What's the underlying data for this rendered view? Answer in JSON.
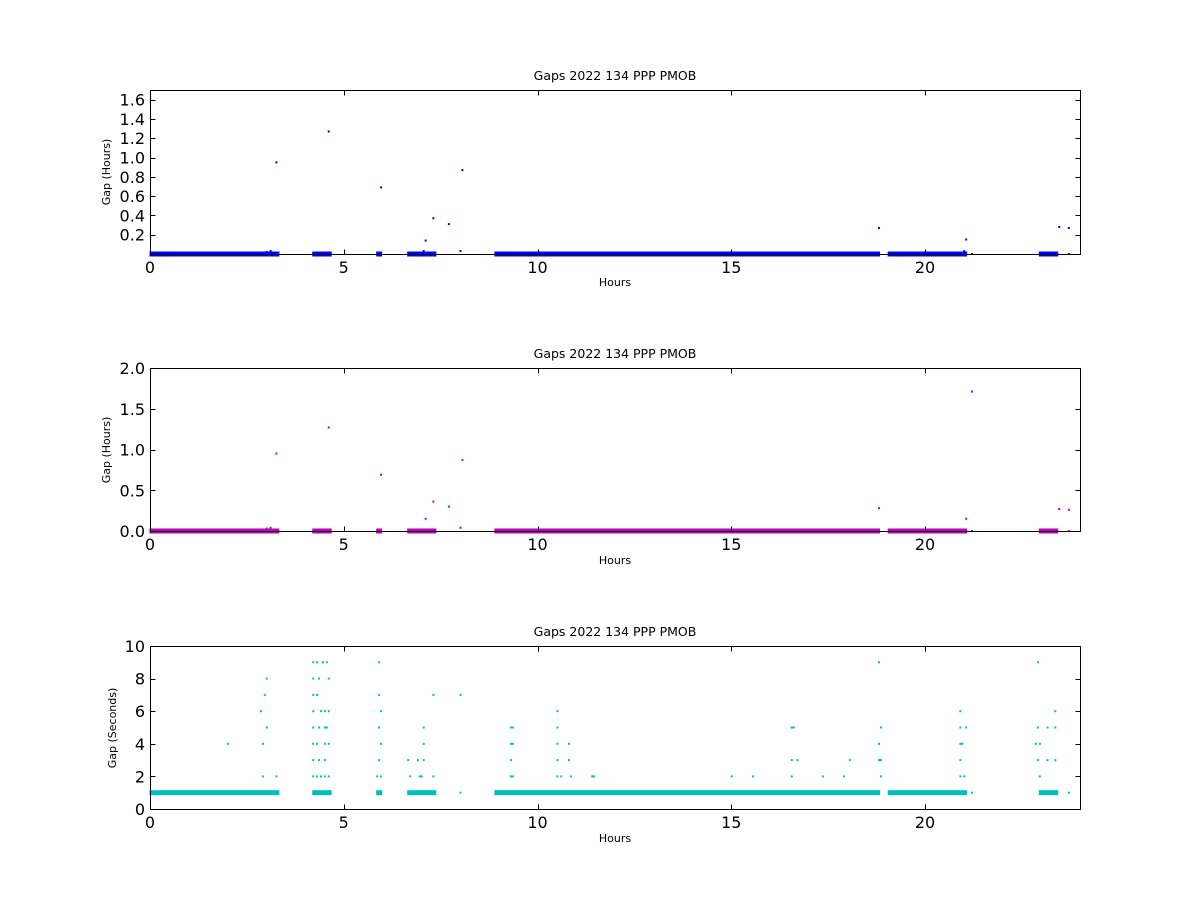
{
  "figure": {
    "background": "#ffffff"
  },
  "chart_data": [
    {
      "type": "scatter",
      "title": "Gaps 2022 134 PPP  PMOB",
      "xlabel": "Hours",
      "ylabel": "Gap (Hours)",
      "xlim": [
        0,
        24
      ],
      "ylim": [
        0,
        1.7
      ],
      "xticks": [
        0,
        5,
        10,
        15,
        20
      ],
      "xtick_labels": [
        "0",
        "5",
        "10",
        "15",
        "20"
      ],
      "yticks": [
        0.2,
        0.4,
        0.6,
        0.8,
        1.0,
        1.2,
        1.4,
        1.6
      ],
      "ytick_labels": [
        "0.2",
        "0.4",
        "0.6",
        "0.8",
        "1.0",
        "1.2",
        "1.4",
        "1.6"
      ],
      "grid": false,
      "color": "#0000ff",
      "dense_ranges": [
        {
          "x": [
            0.0,
            3.3
          ],
          "y": 0.0
        },
        {
          "x": [
            4.2,
            4.65
          ],
          "y": 0.0
        },
        {
          "x": [
            5.85,
            5.95
          ],
          "y": 0.0
        },
        {
          "x": [
            6.65,
            7.35
          ],
          "y": 0.0
        },
        {
          "x": [
            8.9,
            18.8
          ],
          "y": 0.0
        },
        {
          "x": [
            19.05,
            21.05
          ],
          "y": 0.0
        },
        {
          "x": [
            22.95,
            23.4
          ],
          "y": 0.0
        }
      ],
      "points": [
        {
          "x": 3.25,
          "y": 0.95
        },
        {
          "x": 4.6,
          "y": 1.27
        },
        {
          "x": 5.95,
          "y": 0.69
        },
        {
          "x": 7.1,
          "y": 0.14
        },
        {
          "x": 7.3,
          "y": 0.37
        },
        {
          "x": 7.7,
          "y": 0.31
        },
        {
          "x": 8.05,
          "y": 0.87
        },
        {
          "x": 8.0,
          "y": 0.03
        },
        {
          "x": 7.05,
          "y": 0.03
        },
        {
          "x": 3.0,
          "y": 0.02
        },
        {
          "x": 3.1,
          "y": 0.03
        },
        {
          "x": 18.8,
          "y": 0.27
        },
        {
          "x": 21.05,
          "y": 0.15
        },
        {
          "x": 21.0,
          "y": 0.03
        },
        {
          "x": 21.2,
          "y": 0.0
        },
        {
          "x": 23.45,
          "y": 0.28
        },
        {
          "x": 23.7,
          "y": 0.27
        },
        {
          "x": 23.7,
          "y": 0.0
        }
      ]
    },
    {
      "type": "scatter",
      "title": "Gaps 2022 134 PPP  PMOB",
      "xlabel": "Hours",
      "ylabel": "Gap (Hours)",
      "xlim": [
        0,
        24
      ],
      "ylim": [
        0,
        2.0
      ],
      "xticks": [
        0,
        5,
        10,
        15,
        20
      ],
      "xtick_labels": [
        "0",
        "5",
        "10",
        "15",
        "20"
      ],
      "yticks": [
        0.0,
        0.5,
        1.0,
        1.5,
        2.0
      ],
      "ytick_labels": [
        "0.0",
        "0.5",
        "1.0",
        "1.5",
        "2.0"
      ],
      "grid": false,
      "color": "#bf00bf",
      "dense_ranges": [
        {
          "x": [
            0.0,
            3.3
          ],
          "y": 0.0
        },
        {
          "x": [
            4.2,
            4.65
          ],
          "y": 0.0
        },
        {
          "x": [
            5.85,
            5.95
          ],
          "y": 0.0
        },
        {
          "x": [
            6.65,
            7.35
          ],
          "y": 0.0
        },
        {
          "x": [
            8.9,
            18.8
          ],
          "y": 0.0
        },
        {
          "x": [
            19.05,
            21.05
          ],
          "y": 0.0
        },
        {
          "x": [
            22.95,
            23.4
          ],
          "y": 0.0
        }
      ],
      "points": [
        {
          "x": 3.25,
          "y": 0.95
        },
        {
          "x": 4.6,
          "y": 1.27
        },
        {
          "x": 5.95,
          "y": 0.69
        },
        {
          "x": 7.1,
          "y": 0.15
        },
        {
          "x": 7.3,
          "y": 0.36
        },
        {
          "x": 7.7,
          "y": 0.3
        },
        {
          "x": 8.05,
          "y": 0.87
        },
        {
          "x": 8.0,
          "y": 0.04
        },
        {
          "x": 3.0,
          "y": 0.03
        },
        {
          "x": 3.1,
          "y": 0.04
        },
        {
          "x": 18.8,
          "y": 0.28
        },
        {
          "x": 21.05,
          "y": 0.15
        },
        {
          "x": 21.2,
          "y": 1.71
        },
        {
          "x": 21.2,
          "y": 0.0
        },
        {
          "x": 23.45,
          "y": 0.27
        },
        {
          "x": 23.7,
          "y": 0.26
        },
        {
          "x": 23.7,
          "y": 0.0
        }
      ]
    },
    {
      "type": "scatter",
      "title": "Gaps 2022 134 PPP  PMOB",
      "xlabel": "Hours",
      "ylabel": "Gap (Seconds)",
      "xlim": [
        0,
        24
      ],
      "ylim": [
        0,
        10
      ],
      "xticks": [
        0,
        5,
        10,
        15,
        20
      ],
      "xtick_labels": [
        "0",
        "5",
        "10",
        "15",
        "20"
      ],
      "yticks": [
        0,
        2,
        4,
        6,
        8,
        10
      ],
      "ytick_labels": [
        "0",
        "2",
        "4",
        "6",
        "8",
        "10"
      ],
      "grid": false,
      "color": "#00bfbf",
      "dense_ranges": [
        {
          "x": [
            0.0,
            3.3
          ],
          "y": 1
        },
        {
          "x": [
            4.2,
            4.65
          ],
          "y": 1
        },
        {
          "x": [
            5.85,
            5.95
          ],
          "y": 1
        },
        {
          "x": [
            6.65,
            7.35
          ],
          "y": 1
        },
        {
          "x": [
            8.9,
            18.8
          ],
          "y": 1
        },
        {
          "x": [
            19.05,
            21.05
          ],
          "y": 1
        },
        {
          "x": [
            22.95,
            23.4
          ],
          "y": 1
        }
      ],
      "points": [
        {
          "x": 2.0,
          "y": 4
        },
        {
          "x": 2.85,
          "y": 6
        },
        {
          "x": 2.9,
          "y": 4
        },
        {
          "x": 2.9,
          "y": 2
        },
        {
          "x": 2.95,
          "y": 7
        },
        {
          "x": 3.0,
          "y": 8
        },
        {
          "x": 3.0,
          "y": 5
        },
        {
          "x": 3.25,
          "y": 2
        },
        {
          "x": 4.2,
          "y": 9
        },
        {
          "x": 4.3,
          "y": 9
        },
        {
          "x": 4.2,
          "y": 8
        },
        {
          "x": 4.35,
          "y": 8
        },
        {
          "x": 4.2,
          "y": 7
        },
        {
          "x": 4.3,
          "y": 7
        },
        {
          "x": 4.2,
          "y": 6
        },
        {
          "x": 4.4,
          "y": 6
        },
        {
          "x": 4.2,
          "y": 5
        },
        {
          "x": 4.35,
          "y": 5
        },
        {
          "x": 4.2,
          "y": 4
        },
        {
          "x": 4.3,
          "y": 4
        },
        {
          "x": 4.2,
          "y": 3
        },
        {
          "x": 4.35,
          "y": 3
        },
        {
          "x": 4.2,
          "y": 2
        },
        {
          "x": 4.3,
          "y": 2
        },
        {
          "x": 4.4,
          "y": 2
        },
        {
          "x": 4.45,
          "y": 9
        },
        {
          "x": 4.55,
          "y": 9
        },
        {
          "x": 4.6,
          "y": 8
        },
        {
          "x": 4.5,
          "y": 6
        },
        {
          "x": 4.6,
          "y": 6
        },
        {
          "x": 4.5,
          "y": 5
        },
        {
          "x": 4.55,
          "y": 5
        },
        {
          "x": 4.5,
          "y": 4
        },
        {
          "x": 4.6,
          "y": 4
        },
        {
          "x": 4.5,
          "y": 3
        },
        {
          "x": 4.5,
          "y": 2
        },
        {
          "x": 4.6,
          "y": 2
        },
        {
          "x": 5.9,
          "y": 9
        },
        {
          "x": 5.9,
          "y": 7
        },
        {
          "x": 5.95,
          "y": 6
        },
        {
          "x": 5.9,
          "y": 5
        },
        {
          "x": 5.95,
          "y": 4
        },
        {
          "x": 5.9,
          "y": 3
        },
        {
          "x": 5.85,
          "y": 2
        },
        {
          "x": 5.95,
          "y": 2
        },
        {
          "x": 6.65,
          "y": 3
        },
        {
          "x": 6.7,
          "y": 2
        },
        {
          "x": 6.9,
          "y": 3
        },
        {
          "x": 6.95,
          "y": 2
        },
        {
          "x": 7.05,
          "y": 5
        },
        {
          "x": 7.05,
          "y": 4
        },
        {
          "x": 7.0,
          "y": 2
        },
        {
          "x": 7.05,
          "y": 3
        },
        {
          "x": 7.3,
          "y": 7
        },
        {
          "x": 7.3,
          "y": 2
        },
        {
          "x": 8.0,
          "y": 7
        },
        {
          "x": 8.0,
          "y": 1
        },
        {
          "x": 9.3,
          "y": 5
        },
        {
          "x": 9.35,
          "y": 5
        },
        {
          "x": 9.3,
          "y": 4
        },
        {
          "x": 9.35,
          "y": 4
        },
        {
          "x": 9.3,
          "y": 3
        },
        {
          "x": 9.3,
          "y": 2
        },
        {
          "x": 9.35,
          "y": 2
        },
        {
          "x": 10.5,
          "y": 6
        },
        {
          "x": 10.5,
          "y": 5
        },
        {
          "x": 10.5,
          "y": 4
        },
        {
          "x": 10.5,
          "y": 3
        },
        {
          "x": 10.5,
          "y": 2
        },
        {
          "x": 10.6,
          "y": 2
        },
        {
          "x": 10.8,
          "y": 4
        },
        {
          "x": 10.8,
          "y": 3
        },
        {
          "x": 10.85,
          "y": 2
        },
        {
          "x": 11.4,
          "y": 2
        },
        {
          "x": 11.45,
          "y": 2
        },
        {
          "x": 15.0,
          "y": 2
        },
        {
          "x": 15.55,
          "y": 2
        },
        {
          "x": 16.55,
          "y": 5
        },
        {
          "x": 16.6,
          "y": 5
        },
        {
          "x": 16.55,
          "y": 3
        },
        {
          "x": 16.7,
          "y": 3
        },
        {
          "x": 16.55,
          "y": 2
        },
        {
          "x": 17.35,
          "y": 2
        },
        {
          "x": 17.9,
          "y": 2
        },
        {
          "x": 18.05,
          "y": 3
        },
        {
          "x": 18.8,
          "y": 9
        },
        {
          "x": 18.85,
          "y": 5
        },
        {
          "x": 18.8,
          "y": 4
        },
        {
          "x": 18.8,
          "y": 3
        },
        {
          "x": 18.85,
          "y": 3
        },
        {
          "x": 18.85,
          "y": 2
        },
        {
          "x": 20.9,
          "y": 6
        },
        {
          "x": 20.9,
          "y": 5
        },
        {
          "x": 20.9,
          "y": 4
        },
        {
          "x": 20.95,
          "y": 4
        },
        {
          "x": 20.9,
          "y": 3
        },
        {
          "x": 20.9,
          "y": 2
        },
        {
          "x": 21.0,
          "y": 2
        },
        {
          "x": 21.05,
          "y": 5
        },
        {
          "x": 21.0,
          "y": 1
        },
        {
          "x": 21.2,
          "y": 1
        },
        {
          "x": 22.9,
          "y": 9
        },
        {
          "x": 22.9,
          "y": 5
        },
        {
          "x": 22.85,
          "y": 4
        },
        {
          "x": 22.95,
          "y": 4
        },
        {
          "x": 22.9,
          "y": 3
        },
        {
          "x": 22.95,
          "y": 2
        },
        {
          "x": 23.15,
          "y": 5
        },
        {
          "x": 23.15,
          "y": 3
        },
        {
          "x": 23.35,
          "y": 6
        },
        {
          "x": 23.35,
          "y": 5
        },
        {
          "x": 23.35,
          "y": 3
        },
        {
          "x": 23.7,
          "y": 1
        }
      ]
    }
  ]
}
